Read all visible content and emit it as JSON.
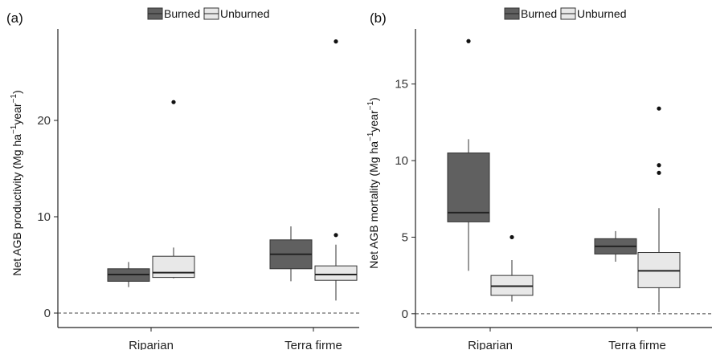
{
  "chart_data": [
    {
      "type": "box",
      "panel_label": "(a)",
      "ylabel": "Net AGB productivity (Mg ha",
      "ylabel_sup1": "−1",
      "ylabel_mid": "year",
      "ylabel_sup2": "−1",
      "ylabel_end": ")",
      "categories": [
        "Riparian",
        "Terra firme"
      ],
      "ylim": [
        -1.5,
        29.5
      ],
      "yticks": [
        0,
        10,
        20
      ],
      "reference_line": 0,
      "legend": [
        "Burned",
        "Unburned"
      ],
      "series": [
        {
          "name": "Burned",
          "color": "#606060",
          "boxes": [
            {
              "category": "Riparian",
              "whisker_low": 2.7,
              "q1": 3.3,
              "median": 4.0,
              "q3": 4.6,
              "whisker_high": 5.3,
              "outliers": []
            },
            {
              "category": "Terra firme",
              "whisker_low": 3.3,
              "q1": 4.6,
              "median": 6.1,
              "q3": 7.6,
              "whisker_high": 9.0,
              "outliers": []
            }
          ]
        },
        {
          "name": "Unburned",
          "color": "#e8e8e8",
          "boxes": [
            {
              "category": "Riparian",
              "whisker_low": 3.6,
              "q1": 3.7,
              "median": 4.2,
              "q3": 5.9,
              "whisker_high": 6.8,
              "outliers": [
                21.9
              ]
            },
            {
              "category": "Terra firme",
              "whisker_low": 1.3,
              "q1": 3.4,
              "median": 4.0,
              "q3": 4.9,
              "whisker_high": 7.1,
              "outliers": [
                8.1,
                28.2
              ]
            }
          ]
        }
      ]
    },
    {
      "type": "box",
      "panel_label": "(b)",
      "ylabel": "Net AGB mortality (Mg ha",
      "ylabel_sup1": "−1",
      "ylabel_mid": "year",
      "ylabel_sup2": "−1",
      "ylabel_end": ")",
      "categories": [
        "Riparian",
        "Terra firme"
      ],
      "ylim": [
        -0.9,
        18.6
      ],
      "yticks": [
        0,
        5,
        10,
        15
      ],
      "reference_line": 0,
      "legend": [
        "Burned",
        "Unburned"
      ],
      "series": [
        {
          "name": "Burned",
          "color": "#606060",
          "boxes": [
            {
              "category": "Riparian",
              "whisker_low": 2.8,
              "q1": 6.0,
              "median": 6.6,
              "q3": 10.5,
              "whisker_high": 11.4,
              "outliers": [
                17.8
              ]
            },
            {
              "category": "Terra firme",
              "whisker_low": 3.4,
              "q1": 3.9,
              "median": 4.4,
              "q3": 4.9,
              "whisker_high": 5.4,
              "outliers": []
            }
          ]
        },
        {
          "name": "Unburned",
          "color": "#e8e8e8",
          "boxes": [
            {
              "category": "Riparian",
              "whisker_low": 0.8,
              "q1": 1.2,
              "median": 1.8,
              "q3": 2.5,
              "whisker_high": 3.5,
              "outliers": [
                5.0
              ]
            },
            {
              "category": "Terra firme",
              "whisker_low": 0.1,
              "q1": 1.7,
              "median": 2.8,
              "q3": 4.0,
              "whisker_high": 6.9,
              "outliers": [
                9.2,
                9.7,
                13.4
              ]
            }
          ]
        }
      ]
    }
  ]
}
